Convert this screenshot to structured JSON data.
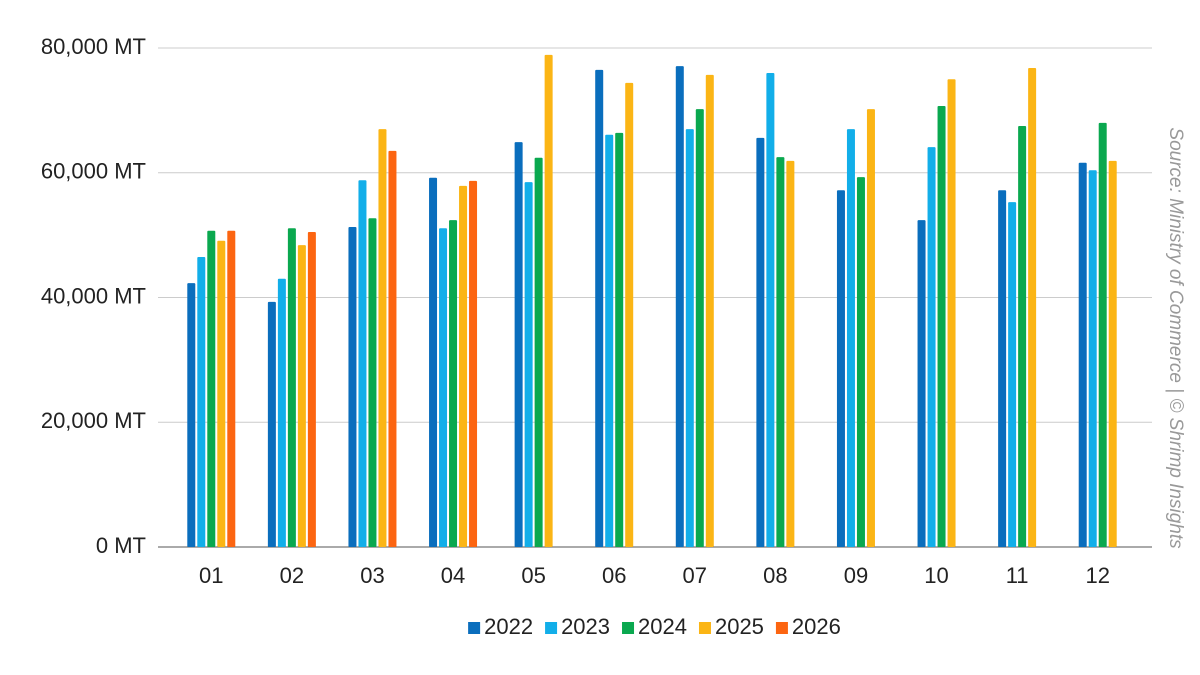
{
  "chart_data": {
    "type": "bar",
    "source": "Source: Ministry of Commerce | © Shrimp Insights",
    "categories": [
      "01",
      "02",
      "03",
      "04",
      "05",
      "06",
      "07",
      "08",
      "09",
      "10",
      "11",
      "12"
    ],
    "series": [
      {
        "name": "2022",
        "color": "#0a6ebd",
        "values": [
          42300,
          39300,
          51300,
          59200,
          64900,
          76500,
          77100,
          65600,
          57200,
          52400,
          57200,
          61600
        ]
      },
      {
        "name": "2023",
        "color": "#12aee9",
        "values": [
          46500,
          43000,
          58800,
          51100,
          58500,
          66100,
          67000,
          76000,
          67000,
          64100,
          55300,
          60400
        ]
      },
      {
        "name": "2024",
        "color": "#0aa84f",
        "values": [
          50700,
          51100,
          52700,
          52400,
          62400,
          66400,
          70200,
          62500,
          59300,
          70700,
          67500,
          68000
        ]
      },
      {
        "name": "2025",
        "color": "#fbb515",
        "values": [
          49100,
          48400,
          67000,
          57900,
          78900,
          74400,
          75700,
          61900,
          70200,
          75000,
          76800,
          61900
        ]
      },
      {
        "name": "2026",
        "color": "#fc6511",
        "values": [
          50700,
          50500,
          63500,
          58700,
          null,
          null,
          null,
          null,
          null,
          null,
          null,
          null
        ]
      }
    ],
    "ylim": [
      0,
      80000
    ],
    "yticks": [
      {
        "value": 0,
        "label": "0 MT"
      },
      {
        "value": 20000,
        "label": "20,000 MT"
      },
      {
        "value": 40000,
        "label": "40,000 MT"
      },
      {
        "value": 60000,
        "label": "60,000 MT"
      },
      {
        "value": 80000,
        "label": "80,000 MT"
      }
    ],
    "grid": true,
    "legend": "bottom"
  }
}
